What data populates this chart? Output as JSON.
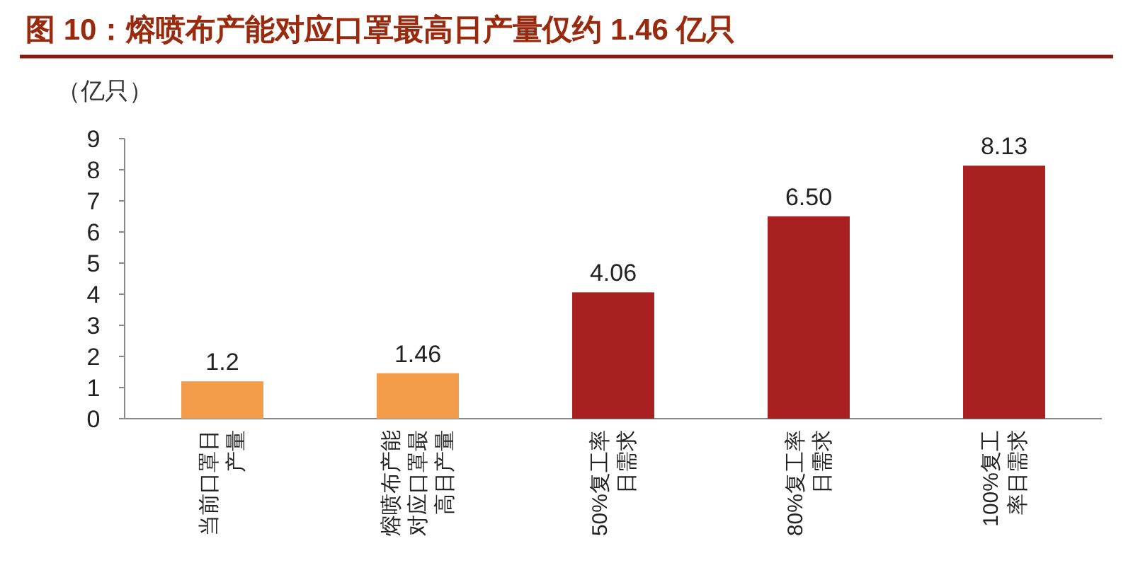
{
  "chart_data": {
    "type": "bar",
    "title": "图 10：熔喷布产能对应口罩最高日产量仅约 1.46 亿只",
    "ylabel": "（亿只）",
    "categories": [
      "当前口罩日产量",
      "熔喷布产能对应口罩最高日产量",
      "50%复工率日需求",
      "80%复工率日需求",
      "100%复工率日需求"
    ],
    "values": [
      1.2,
      1.46,
      4.06,
      6.5,
      8.13
    ],
    "colors": [
      "#f39c4a",
      "#f39c4a",
      "#a82020",
      "#a82020",
      "#a82020"
    ],
    "value_labels": [
      "1.2",
      "1.46",
      "4.06",
      "6.50",
      "8.13"
    ],
    "ylim": [
      0,
      9
    ],
    "yticks": [
      0,
      1,
      2,
      3,
      4,
      5,
      6,
      7,
      8,
      9
    ],
    "grid": false
  }
}
